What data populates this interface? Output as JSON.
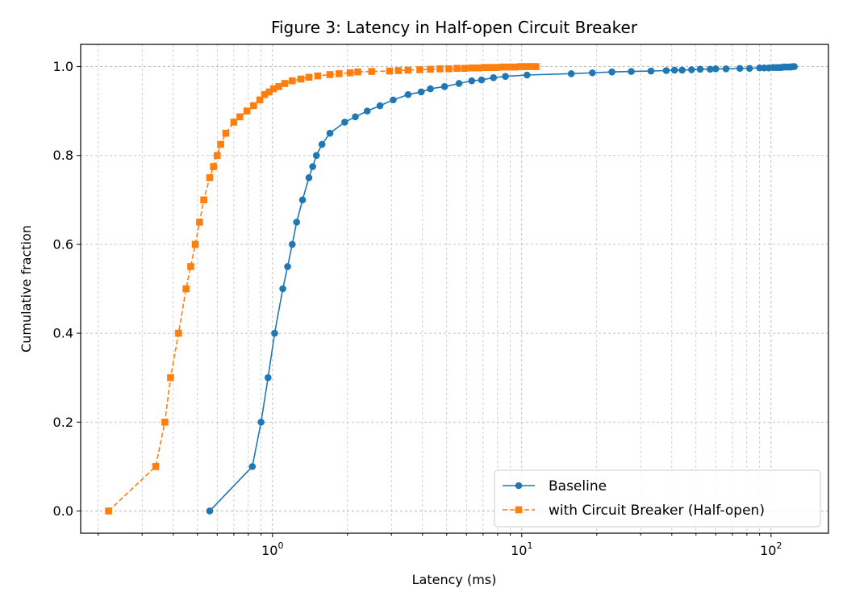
{
  "chart_data": {
    "type": "line",
    "title": "Figure 3: Latency in Half-open Circuit Breaker",
    "xlabel": "Latency (ms)",
    "ylabel": "Cumulative fraction",
    "xscale": "log",
    "xlim": [
      0.17,
      170
    ],
    "ylim": [
      -0.05,
      1.05
    ],
    "x_ticks": [
      {
        "value": 1,
        "base": "10",
        "exp": "0"
      },
      {
        "value": 10,
        "base": "10",
        "exp": "1"
      },
      {
        "value": 100,
        "base": "10",
        "exp": "2"
      }
    ],
    "y_ticks": [
      {
        "value": 0.0,
        "label": "0.0"
      },
      {
        "value": 0.2,
        "label": "0.2"
      },
      {
        "value": 0.4,
        "label": "0.4"
      },
      {
        "value": 0.6,
        "label": "0.6"
      },
      {
        "value": 0.8,
        "label": "0.8"
      },
      {
        "value": 1.0,
        "label": "1.0"
      }
    ],
    "grid": true,
    "legend_position": "lower-right",
    "series": [
      {
        "name": "Baseline",
        "color": "#1f77b4",
        "line_style": "solid",
        "marker": "circle",
        "x": [
          0.56,
          0.83,
          0.9,
          0.96,
          1.02,
          1.1,
          1.15,
          1.2,
          1.25,
          1.32,
          1.4,
          1.45,
          1.5,
          1.58,
          1.7,
          1.95,
          2.15,
          2.4,
          2.7,
          3.05,
          3.5,
          3.95,
          4.3,
          4.9,
          5.6,
          6.3,
          6.9,
          7.7,
          8.6,
          10.5,
          15.8,
          19.2,
          23,
          27.5,
          33,
          38,
          41,
          44,
          48,
          52,
          57,
          60,
          66,
          75,
          82,
          90,
          94,
          98,
          102,
          105,
          108,
          110,
          112,
          114,
          116,
          118,
          120,
          122,
          124
        ],
        "y": [
          0.0,
          0.1,
          0.2,
          0.3,
          0.4,
          0.5,
          0.55,
          0.6,
          0.65,
          0.7,
          0.75,
          0.775,
          0.8,
          0.825,
          0.85,
          0.875,
          0.887,
          0.9,
          0.912,
          0.925,
          0.937,
          0.943,
          0.95,
          0.955,
          0.962,
          0.968,
          0.97,
          0.975,
          0.978,
          0.981,
          0.984,
          0.986,
          0.988,
          0.989,
          0.99,
          0.991,
          0.992,
          0.992,
          0.993,
          0.994,
          0.994,
          0.995,
          0.995,
          0.996,
          0.996,
          0.997,
          0.997,
          0.997,
          0.998,
          0.998,
          0.998,
          0.998,
          0.999,
          0.999,
          0.999,
          0.999,
          0.999,
          1.0,
          1.0
        ]
      },
      {
        "name": "with Circuit Breaker (Half-open)",
        "color": "#ff7f0e",
        "line_style": "dashed",
        "marker": "square",
        "x": [
          0.22,
          0.34,
          0.37,
          0.39,
          0.42,
          0.45,
          0.47,
          0.49,
          0.51,
          0.53,
          0.56,
          0.58,
          0.6,
          0.62,
          0.65,
          0.7,
          0.74,
          0.79,
          0.84,
          0.89,
          0.93,
          0.97,
          1.01,
          1.06,
          1.12,
          1.2,
          1.3,
          1.4,
          1.52,
          1.7,
          1.85,
          2.05,
          2.2,
          2.5,
          2.95,
          3.2,
          3.5,
          3.9,
          4.3,
          4.7,
          5.1,
          5.5,
          5.9,
          6.3,
          6.7,
          7.1,
          7.5,
          7.9,
          8.4,
          8.9,
          9.4,
          9.9,
          10.4,
          10.9,
          11.4
        ],
        "y": [
          0.0,
          0.1,
          0.2,
          0.3,
          0.4,
          0.5,
          0.55,
          0.6,
          0.65,
          0.7,
          0.75,
          0.775,
          0.8,
          0.825,
          0.85,
          0.875,
          0.887,
          0.9,
          0.912,
          0.925,
          0.937,
          0.943,
          0.95,
          0.955,
          0.962,
          0.968,
          0.972,
          0.976,
          0.979,
          0.982,
          0.984,
          0.986,
          0.988,
          0.989,
          0.99,
          0.991,
          0.992,
          0.993,
          0.994,
          0.995,
          0.995,
          0.996,
          0.996,
          0.997,
          0.997,
          0.998,
          0.998,
          0.998,
          0.999,
          0.999,
          0.999,
          1.0,
          1.0,
          1.0,
          1.0
        ]
      }
    ]
  }
}
